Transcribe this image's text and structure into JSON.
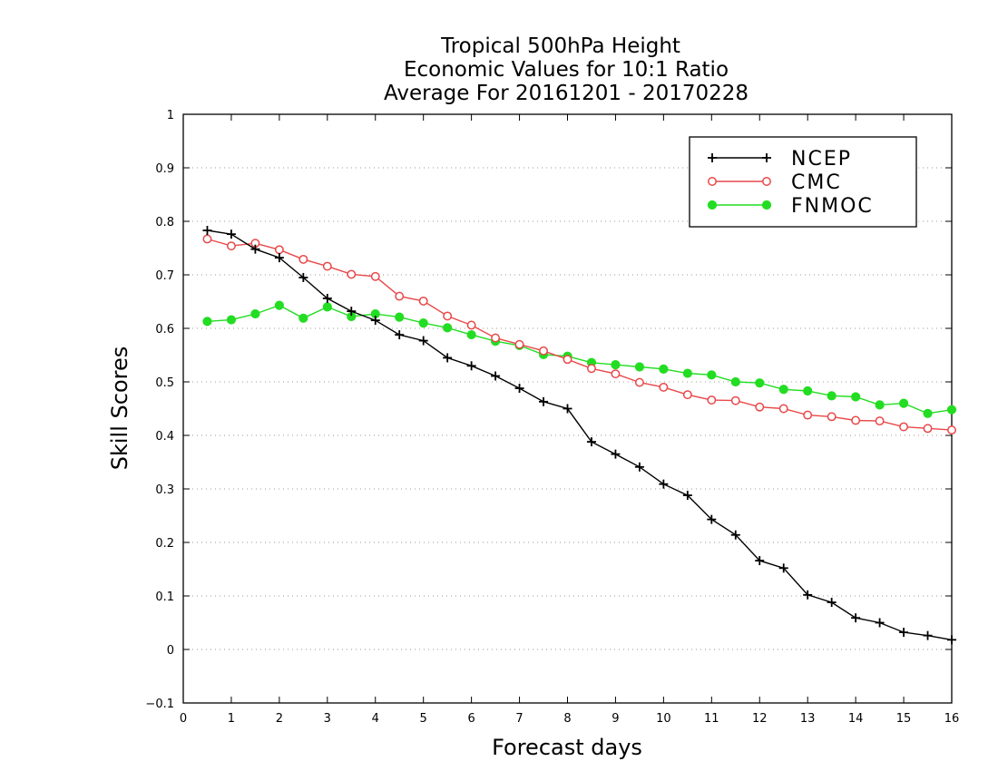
{
  "chart_data": {
    "type": "line",
    "title": [
      "Tropical 500hPa Height",
      "Economic Values for 10:1 Ratio",
      "Average For 20161201 - 20170228"
    ],
    "xlabel": "Forecast days",
    "ylabel": "Skill Scores",
    "xlim": [
      0,
      16
    ],
    "ylim": [
      -0.1,
      1
    ],
    "x_ticks": [
      "0",
      "1",
      "2",
      "3",
      "4",
      "5",
      "6",
      "7",
      "8",
      "9",
      "10",
      "11",
      "12",
      "13",
      "14",
      "15",
      "16"
    ],
    "y_ticks": [
      "−0.1",
      "0",
      "0.1",
      "0.2",
      "0.3",
      "0.4",
      "0.5",
      "0.6",
      "0.7",
      "0.8",
      "0.9",
      "1"
    ],
    "grid": "horizontal dotted",
    "legend_position": "top-right",
    "x": [
      0.5,
      1,
      1.5,
      2,
      2.5,
      3,
      3.5,
      4,
      4.5,
      5,
      5.5,
      6,
      6.5,
      7,
      7.5,
      8,
      8.5,
      9,
      9.5,
      10,
      10.5,
      11,
      11.5,
      12,
      12.5,
      13,
      13.5,
      14,
      14.5,
      15,
      15.5,
      16
    ],
    "series": [
      {
        "name": "NCEP",
        "color": "#000000",
        "marker": "plus",
        "values": [
          0.783,
          0.776,
          0.748,
          0.732,
          0.695,
          0.656,
          0.632,
          0.615,
          0.588,
          0.577,
          0.545,
          0.53,
          0.511,
          0.488,
          0.463,
          0.45,
          0.388,
          0.365,
          0.341,
          0.309,
          0.288,
          0.243,
          0.214,
          0.166,
          0.152,
          0.102,
          0.088,
          0.059,
          0.05,
          0.032,
          0.026,
          0.018
        ]
      },
      {
        "name": "CMC",
        "color": "#e8484a",
        "marker": "open-circle",
        "values": [
          0.767,
          0.754,
          0.759,
          0.747,
          0.729,
          0.716,
          0.701,
          0.697,
          0.66,
          0.651,
          0.623,
          0.606,
          0.582,
          0.57,
          0.558,
          0.542,
          0.525,
          0.515,
          0.499,
          0.49,
          0.476,
          0.466,
          0.465,
          0.453,
          0.45,
          0.438,
          0.435,
          0.428,
          0.427,
          0.416,
          0.413,
          0.41
        ]
      },
      {
        "name": "FNMOC",
        "color": "#22dd22",
        "marker": "filled-circle",
        "values": [
          0.613,
          0.616,
          0.627,
          0.643,
          0.619,
          0.64,
          0.622,
          0.627,
          0.621,
          0.61,
          0.601,
          0.588,
          0.576,
          0.568,
          0.551,
          0.548,
          0.536,
          0.532,
          0.528,
          0.524,
          0.516,
          0.513,
          0.5,
          0.498,
          0.486,
          0.483,
          0.474,
          0.472,
          0.457,
          0.46,
          0.441,
          0.448
        ]
      }
    ]
  }
}
